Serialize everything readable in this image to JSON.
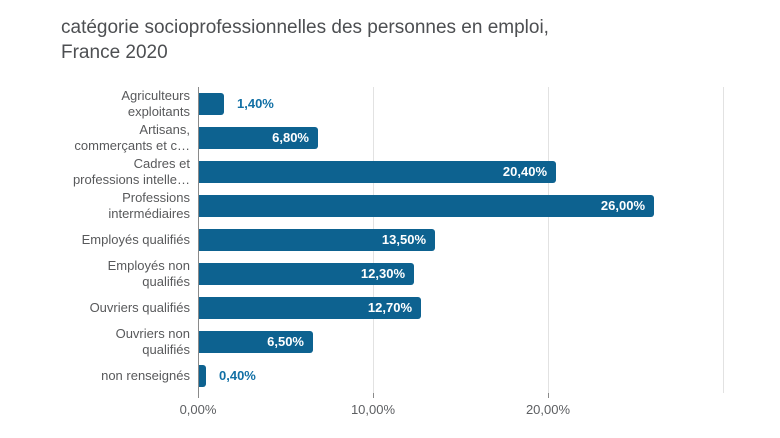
{
  "title": {
    "line1": "catégorie socioprofessionnelles des personnes en emploi,",
    "line2": "France 2020"
  },
  "chart_data": {
    "type": "bar",
    "orientation": "horizontal",
    "title": "catégorie socioprofessionnelles des personnes en emploi, France 2020",
    "categories": [
      "Agriculteurs exploitants",
      "Artisans, commerçants et c…",
      "Cadres et professions intelle…",
      "Professions intermédiaires",
      "Employés qualifiés",
      "Employés non qualifiés",
      "Ouvriers qualifiés",
      "Ouvriers non qualifiés",
      "non renseignés"
    ],
    "category_label_lines": [
      [
        "Agriculteurs",
        "exploitants"
      ],
      [
        "Artisans,",
        "commerçants et c…"
      ],
      [
        "Cadres et",
        "professions intelle…"
      ],
      [
        "Professions",
        "intermédiaires"
      ],
      [
        "Employés qualifiés"
      ],
      [
        "Employés non",
        "qualifiés"
      ],
      [
        "Ouvriers qualifiés"
      ],
      [
        "Ouvriers non",
        "qualifiés"
      ],
      [
        "non renseignés"
      ]
    ],
    "values": [
      1.4,
      6.8,
      20.4,
      26.0,
      13.5,
      12.3,
      12.7,
      6.5,
      0.4
    ],
    "value_labels": [
      "1,40%",
      "6,80%",
      "20,40%",
      "26,00%",
      "13,50%",
      "12,30%",
      "12,70%",
      "6,50%",
      "0,40%"
    ],
    "xlabel": "",
    "ylabel": "",
    "xlim": [
      0,
      30
    ],
    "x_tick_values": [
      0,
      10,
      20
    ],
    "x_tick_labels": [
      "0,00%",
      "10,00%",
      "20,00%"
    ],
    "grid_values": [
      10,
      20,
      30
    ],
    "grid": true,
    "legend": "none"
  },
  "colors": {
    "bar": "#0d6290",
    "value_label_inside": "#ffffff",
    "value_label_outside": "#1270a5",
    "gridline": "#e2e2e2",
    "axis_line": "#8a8a8a",
    "tick": "#8a8a8a",
    "axis_text": "#5d5f62",
    "category_text": "#58595b",
    "title_text": "#4d4f52",
    "background": "#ffffff"
  }
}
